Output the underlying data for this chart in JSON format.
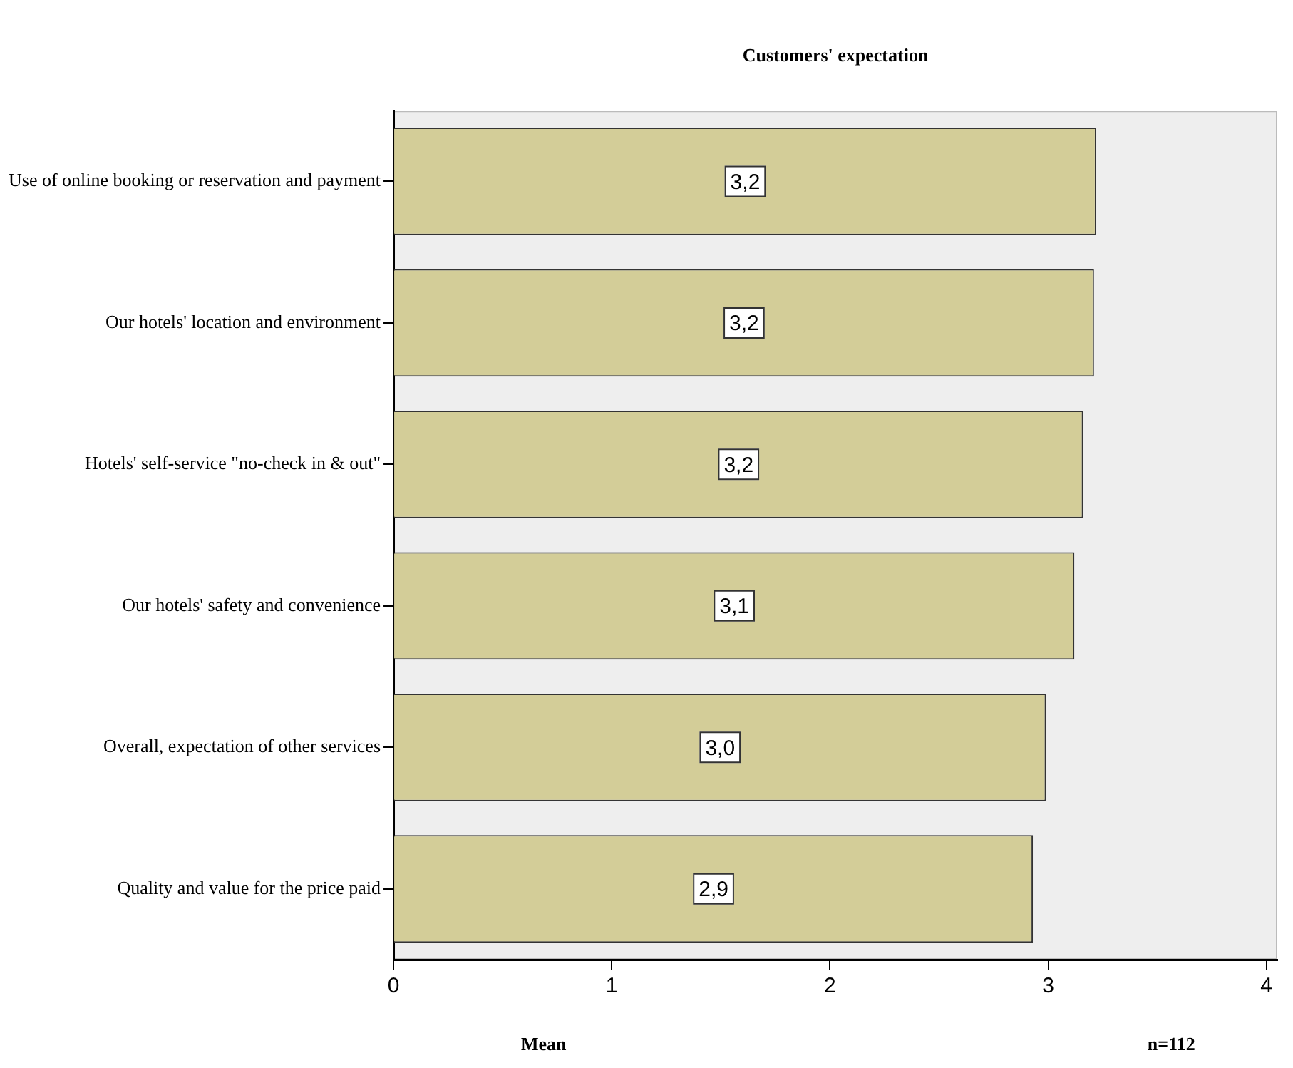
{
  "chart_data": {
    "type": "bar",
    "orientation": "horizontal",
    "title": "Customers' expectation",
    "xlabel": "Mean",
    "categories": [
      "Use of online booking or reservation and payment",
      "Our hotels' location and environment",
      "Hotels' self-service \"no-check in & out\"",
      "Our hotels' safety and convenience",
      "Overall, expectation of other services",
      "Quality and value for the price paid"
    ],
    "values": [
      3.22,
      3.21,
      3.16,
      3.12,
      2.99,
      2.93
    ],
    "value_labels": [
      "3,2",
      "3,2",
      "3,2",
      "3,1",
      "3,0",
      "2,9"
    ],
    "color": "#d3cd98",
    "xlim": [
      0,
      4.05
    ],
    "xticks": [
      0,
      1,
      2,
      3,
      4
    ],
    "grid": false,
    "legend": false,
    "annotations": [
      "n=112"
    ]
  }
}
